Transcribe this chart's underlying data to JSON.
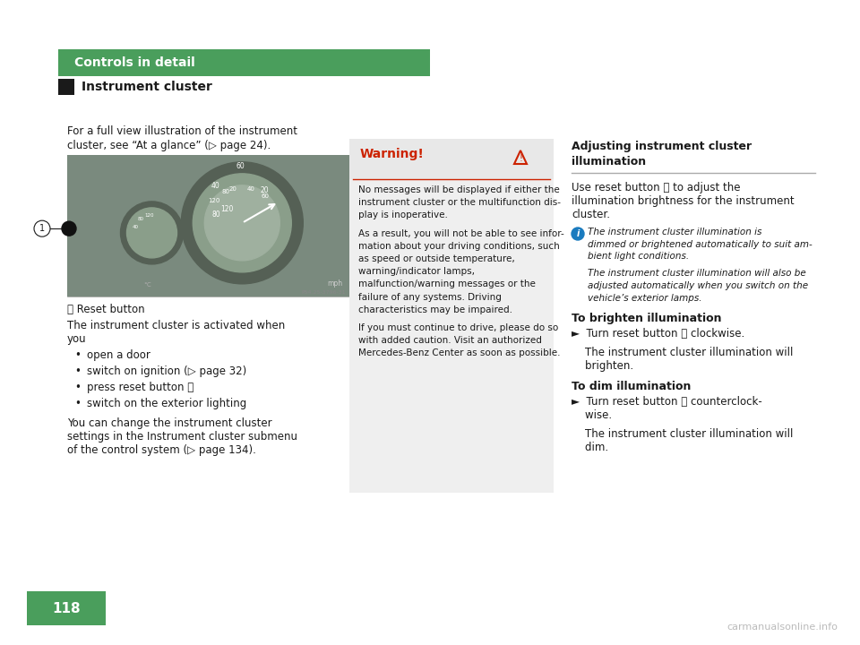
{
  "bg": "#ffffff",
  "green": "#4a9e5c",
  "black": "#1a1a1a",
  "red": "#cc2200",
  "gray_text": "#444444",
  "light_gray": "#f0f0f0",
  "mid_gray": "#aaaaaa",
  "blue_info": "#1a7bbf",
  "header_text": "Controls in detail",
  "section_text": "Instrument cluster",
  "intro": "For a full view illustration of the instrument\ncluster, see “At a glance” (▷ page 24).",
  "reset_label_pre": "ⓘ Reset button",
  "activated_line1": "The instrument cluster is activated when",
  "activated_line2": "you",
  "bullets": [
    "open a door",
    "switch on ignition (▷ page 32)",
    "press reset button ⓘ",
    "switch on the exterior lighting"
  ],
  "change_text_lines": [
    "You can change the instrument cluster",
    "settings in the Instrument cluster submenu",
    "of the control system (▷ page 134)."
  ],
  "warn_title": "Warning!",
  "warn_lines": [
    "No messages will be displayed if either the",
    "instrument cluster or the multifunction dis-",
    "play is inoperative.",
    "",
    "As a result, you will not be able to see infor-",
    "mation about your driving conditions, such",
    "as speed or outside temperature,",
    "warning/indicator lamps,",
    "malfunction/warning messages or the",
    "failure of any systems. Driving",
    "characteristics may be impaired.",
    "",
    "If you must continue to drive, please do so",
    "with added caution. Visit an authorized",
    "Mercedes-Benz Center as soon as possible."
  ],
  "adj_title_lines": [
    "Adjusting instrument cluster",
    "illumination"
  ],
  "adj_body_lines": [
    "Use reset button ⓘ to adjust the",
    "illumination brightness for the instrument",
    "cluster."
  ],
  "info_lines": [
    "The instrument cluster illumination is",
    "dimmed or brightened automatically to suit am-",
    "bient light conditions.",
    "",
    "The instrument cluster illumination will also be",
    "adjusted automatically when you switch on the",
    "vehicle’s exterior lamps."
  ],
  "brighten_title": "To brighten illumination",
  "brighten_lines": [
    "►  Turn reset button ⓘ clockwise.",
    "",
    "    The instrument cluster illumination will",
    "    brighten."
  ],
  "dim_title": "To dim illumination",
  "dim_lines": [
    "►  Turn reset button ⓘ counterclock-",
    "    wise.",
    "",
    "    The instrument cluster illumination will",
    "    dim."
  ],
  "page_num": "118",
  "watermark": "carmanualsonline.info"
}
